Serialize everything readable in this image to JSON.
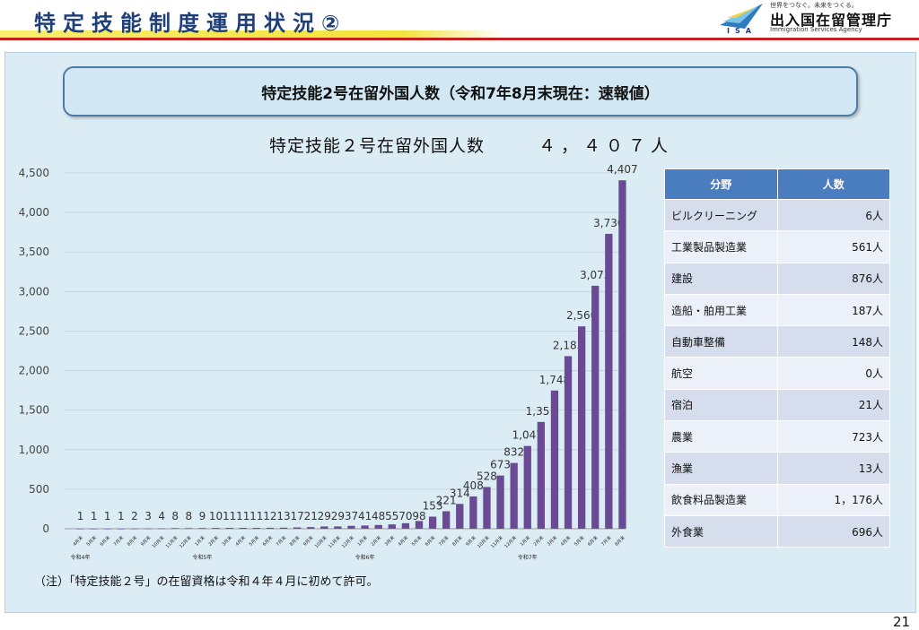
{
  "header": {
    "title": "特定技能制度運用状況②",
    "logo": {
      "tagline": "世界をつなぐ。未来をつくる。",
      "name": "出入国在留管理庁",
      "english": "Immigration Services Agency",
      "abbr": "ISA"
    }
  },
  "banner": "特定技能2号在留外国人数（令和7年8月末現在：速報値）",
  "chart_title": "特定技能２号在留外国人数",
  "chart_total": "４，４０７人",
  "chart_data": {
    "type": "bar",
    "title": "特定技能２号在留外国人数",
    "color": "#6a4a93",
    "ylim": [
      0,
      4500
    ],
    "yticks": [
      "0",
      "500",
      "1,000",
      "1,500",
      "2,000",
      "2,500",
      "3,000",
      "3,500",
      "4,000",
      "4,500"
    ],
    "categories": [
      "4月末",
      "5月末",
      "6月末",
      "7月末",
      "8月末",
      "9月末",
      "10月末",
      "11月末",
      "12月末",
      "1月末",
      "2月末",
      "3月末",
      "4月末",
      "5月末",
      "6月末",
      "7月末",
      "8月末",
      "9月末",
      "10月末",
      "11月末",
      "12月末",
      "1月末",
      "2月末",
      "3月末",
      "4月末",
      "5月末",
      "6月末",
      "7月末",
      "8月末",
      "9月末",
      "10月末",
      "11月末",
      "12月末",
      "1月末",
      "2月末",
      "3月末",
      "4月末",
      "5月末",
      "6月末",
      "7月末",
      "8月末"
    ],
    "values": [
      1,
      1,
      1,
      1,
      2,
      3,
      4,
      8,
      8,
      9,
      10,
      11,
      11,
      11,
      12,
      13,
      17,
      21,
      29,
      29,
      37,
      41,
      48,
      55,
      70,
      98,
      153,
      221,
      314,
      408,
      528,
      673,
      832,
      1047,
      1351,
      1748,
      2183,
      2560,
      3073,
      3730,
      4407
    ],
    "value_labels": [
      "1",
      "1",
      "1",
      "1",
      "2",
      "3",
      "4",
      "8",
      "8",
      "9",
      "10",
      "11",
      "11",
      "11",
      "12",
      "13",
      "17",
      "21",
      "29",
      "29",
      "37",
      "41",
      "48",
      "55",
      "70",
      "98",
      "153",
      "221",
      "314",
      "408",
      "528",
      "673",
      "832",
      "1,047",
      "1,351",
      "1,748",
      "2,183",
      "2,560",
      "3,073",
      "3,730",
      "4,407"
    ],
    "era_labels": [
      {
        "index": 0,
        "text": "令和4年"
      },
      {
        "index": 9,
        "text": "令和5年"
      },
      {
        "index": 21,
        "text": "令和6年"
      },
      {
        "index": 33,
        "text": "令和7年"
      }
    ],
    "grid": true,
    "legend": "none"
  },
  "table": {
    "headers": [
      "分野",
      "人数"
    ],
    "rows": [
      [
        "ビルクリーニング",
        "6人"
      ],
      [
        "工業製品製造業",
        "561人"
      ],
      [
        "建設",
        "876人"
      ],
      [
        "造船・舶用工業",
        "187人"
      ],
      [
        "自動車整備",
        "148人"
      ],
      [
        "航空",
        "0人"
      ],
      [
        "宿泊",
        "21人"
      ],
      [
        "農業",
        "723人"
      ],
      [
        "漁業",
        "13人"
      ],
      [
        "飲食料品製造業",
        "1，176人"
      ],
      [
        "外食業",
        "696人"
      ]
    ]
  },
  "note": "（注）「特定技能２号」の在留資格は令和４年４月に初めて許可。",
  "page_number": "21",
  "colors": {
    "title": "#1f3f78",
    "accent_red": "#c61f1f",
    "bar": "#6a4a93",
    "table_header": "#4a7dc0",
    "panel": "#dcecf5"
  }
}
